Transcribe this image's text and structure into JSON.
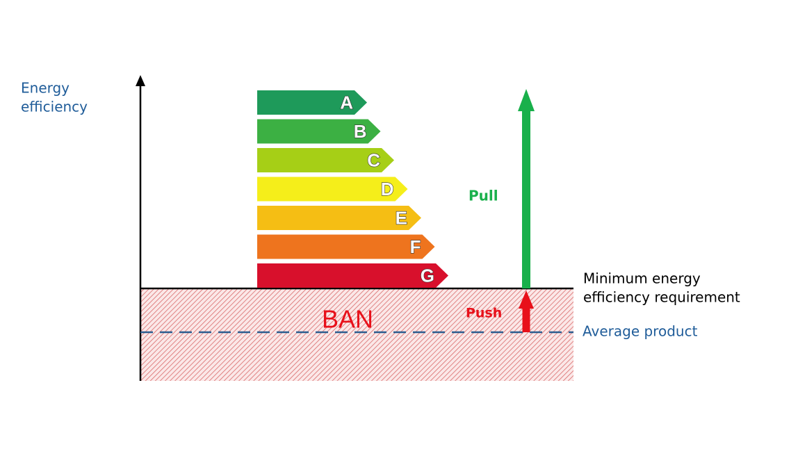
{
  "axis_label": [
    "Energy",
    "efficiency"
  ],
  "classes": [
    {
      "label": "A",
      "color": "#1e9a5a"
    },
    {
      "label": "B",
      "color": "#3cb043"
    },
    {
      "label": "C",
      "color": "#a6cf16"
    },
    {
      "label": "D",
      "color": "#f5ee1a"
    },
    {
      "label": "E",
      "color": "#f5be14"
    },
    {
      "label": "F",
      "color": "#ee741e"
    },
    {
      "label": "G",
      "color": "#d8102c"
    }
  ],
  "pull": "Pull",
  "push": "Push",
  "ban": "BAN",
  "minimum": [
    "Minimum energy",
    "efficiency requirement"
  ],
  "average": "Average product"
}
